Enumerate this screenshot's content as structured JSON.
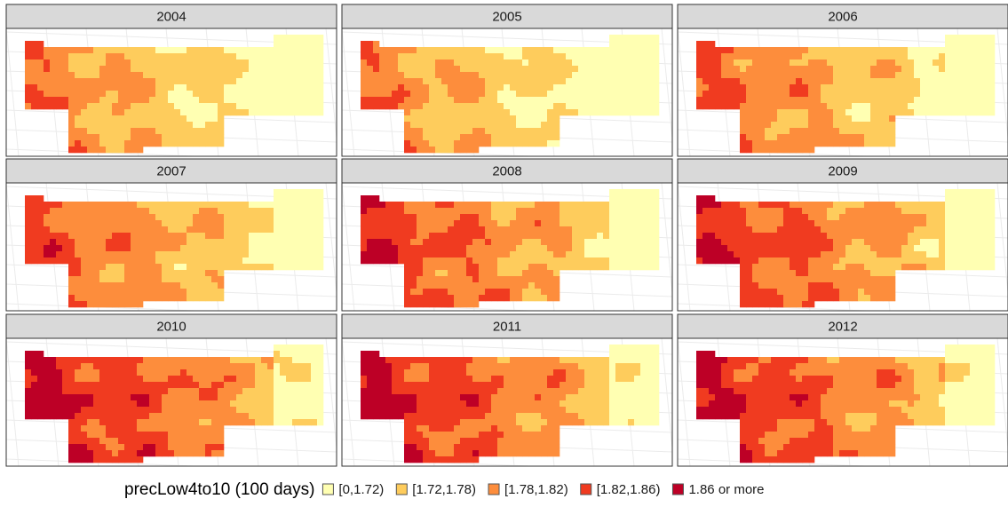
{
  "panels": [
    "2004",
    "2005",
    "2006",
    "2007",
    "2008",
    "2009",
    "2010",
    "2011",
    "2012"
  ],
  "legend": {
    "title": "precLow4to10 (100 days)",
    "items": [
      {
        "label": "[0,1.72)",
        "color": "#ffffb2"
      },
      {
        "label": "[1.72,1.78)",
        "color": "#fecc5c"
      },
      {
        "label": "[1.78,1.82)",
        "color": "#fd8d3c"
      },
      {
        "label": "[1.82,1.86)",
        "color": "#f03b20"
      },
      {
        "label": "1.86 or more",
        "color": "#bd0026"
      }
    ]
  }
}
